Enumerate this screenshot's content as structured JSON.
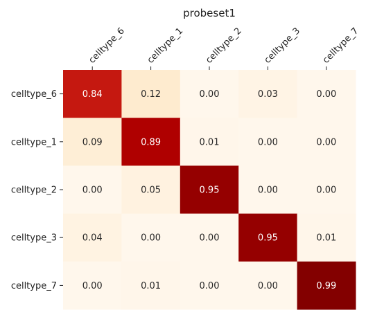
{
  "chart_data": {
    "type": "heatmap",
    "title": "probeset1",
    "x_categories": [
      "celltype_6",
      "celltype_1",
      "celltype_2",
      "celltype_3",
      "celltype_7"
    ],
    "y_categories": [
      "celltype_6",
      "celltype_1",
      "celltype_2",
      "celltype_3",
      "celltype_7"
    ],
    "values": [
      [
        0.84,
        0.12,
        0.0,
        0.03,
        0.0
      ],
      [
        0.09,
        0.89,
        0.01,
        0.0,
        0.0
      ],
      [
        0.0,
        0.05,
        0.95,
        0.0,
        0.0
      ],
      [
        0.04,
        0.0,
        0.0,
        0.95,
        0.01
      ],
      [
        0.0,
        0.01,
        0.0,
        0.0,
        0.99
      ]
    ],
    "value_labels": [
      [
        "0.84",
        "0.12",
        "0.00",
        "0.03",
        "0.00"
      ],
      [
        "0.09",
        "0.89",
        "0.01",
        "0.00",
        "0.00"
      ],
      [
        "0.00",
        "0.05",
        "0.95",
        "0.00",
        "0.00"
      ],
      [
        "0.04",
        "0.00",
        "0.00",
        "0.95",
        "0.01"
      ],
      [
        "0.00",
        "0.01",
        "0.00",
        "0.00",
        "0.99"
      ]
    ],
    "x_axis_position": "top",
    "colormap": "OrRd",
    "colorbar": false,
    "value_range": [
      0,
      1
    ],
    "colors": {
      "low": "#fff7ec",
      "mid": "#fdd49e",
      "high": "#b30000",
      "max": "#7f0000",
      "text_dark": "#262626",
      "text_light": "#ffffff"
    }
  }
}
